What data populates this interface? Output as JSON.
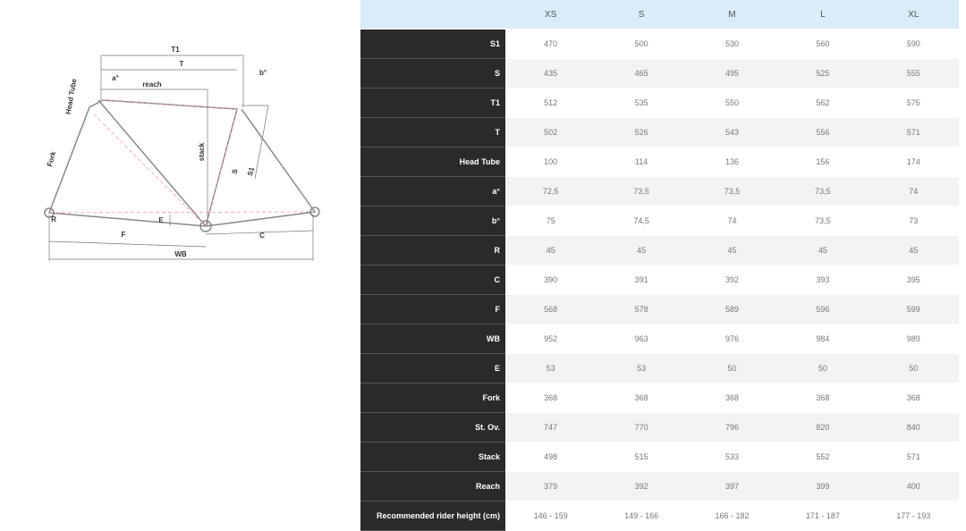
{
  "diagram": {
    "labels": {
      "t1": "T1",
      "t": "T",
      "a": "a°",
      "b": "b°",
      "reach": "reach",
      "head_tube": "Head Tube",
      "fork": "Fork",
      "stack": "stack",
      "s": "S",
      "s1": "S1",
      "r": "R",
      "e": "E",
      "f": "F",
      "c": "C",
      "wb": "WB"
    }
  },
  "table": {
    "columns": [
      "XS",
      "S",
      "M",
      "L",
      "XL"
    ],
    "rows": [
      {
        "label": "S1",
        "values": [
          470,
          500,
          530,
          560,
          590
        ]
      },
      {
        "label": "S",
        "values": [
          435,
          465,
          495,
          525,
          555
        ]
      },
      {
        "label": "T1",
        "values": [
          512,
          535,
          550,
          562,
          575
        ]
      },
      {
        "label": "T",
        "values": [
          502,
          526,
          543,
          556,
          571
        ]
      },
      {
        "label": "Head Tube",
        "values": [
          100,
          114,
          136,
          156,
          174
        ]
      },
      {
        "label": "a°",
        "values": [
          "72,5",
          "73,5",
          "73,5",
          "73,5",
          74
        ]
      },
      {
        "label": "b°",
        "values": [
          75,
          "74,5",
          74,
          "73,5",
          73
        ]
      },
      {
        "label": "R",
        "values": [
          45,
          45,
          45,
          45,
          45
        ]
      },
      {
        "label": "C",
        "values": [
          390,
          391,
          392,
          393,
          395
        ]
      },
      {
        "label": "F",
        "values": [
          568,
          578,
          589,
          596,
          599
        ]
      },
      {
        "label": "WB",
        "values": [
          952,
          963,
          976,
          984,
          989
        ]
      },
      {
        "label": "E",
        "values": [
          53,
          53,
          50,
          50,
          50
        ]
      },
      {
        "label": "Fork",
        "values": [
          368,
          368,
          368,
          368,
          368
        ]
      },
      {
        "label": "St. Ov.",
        "values": [
          747,
          770,
          796,
          820,
          840
        ]
      },
      {
        "label": "Stack",
        "values": [
          498,
          515,
          533,
          552,
          571
        ]
      },
      {
        "label": "Reach",
        "values": [
          379,
          392,
          397,
          399,
          400
        ]
      },
      {
        "label": "Recommended rider height (cm)",
        "values": [
          "146 - 159",
          "149 - 166",
          "166 - 182",
          "171 - 187",
          "177 - 193"
        ]
      }
    ]
  }
}
